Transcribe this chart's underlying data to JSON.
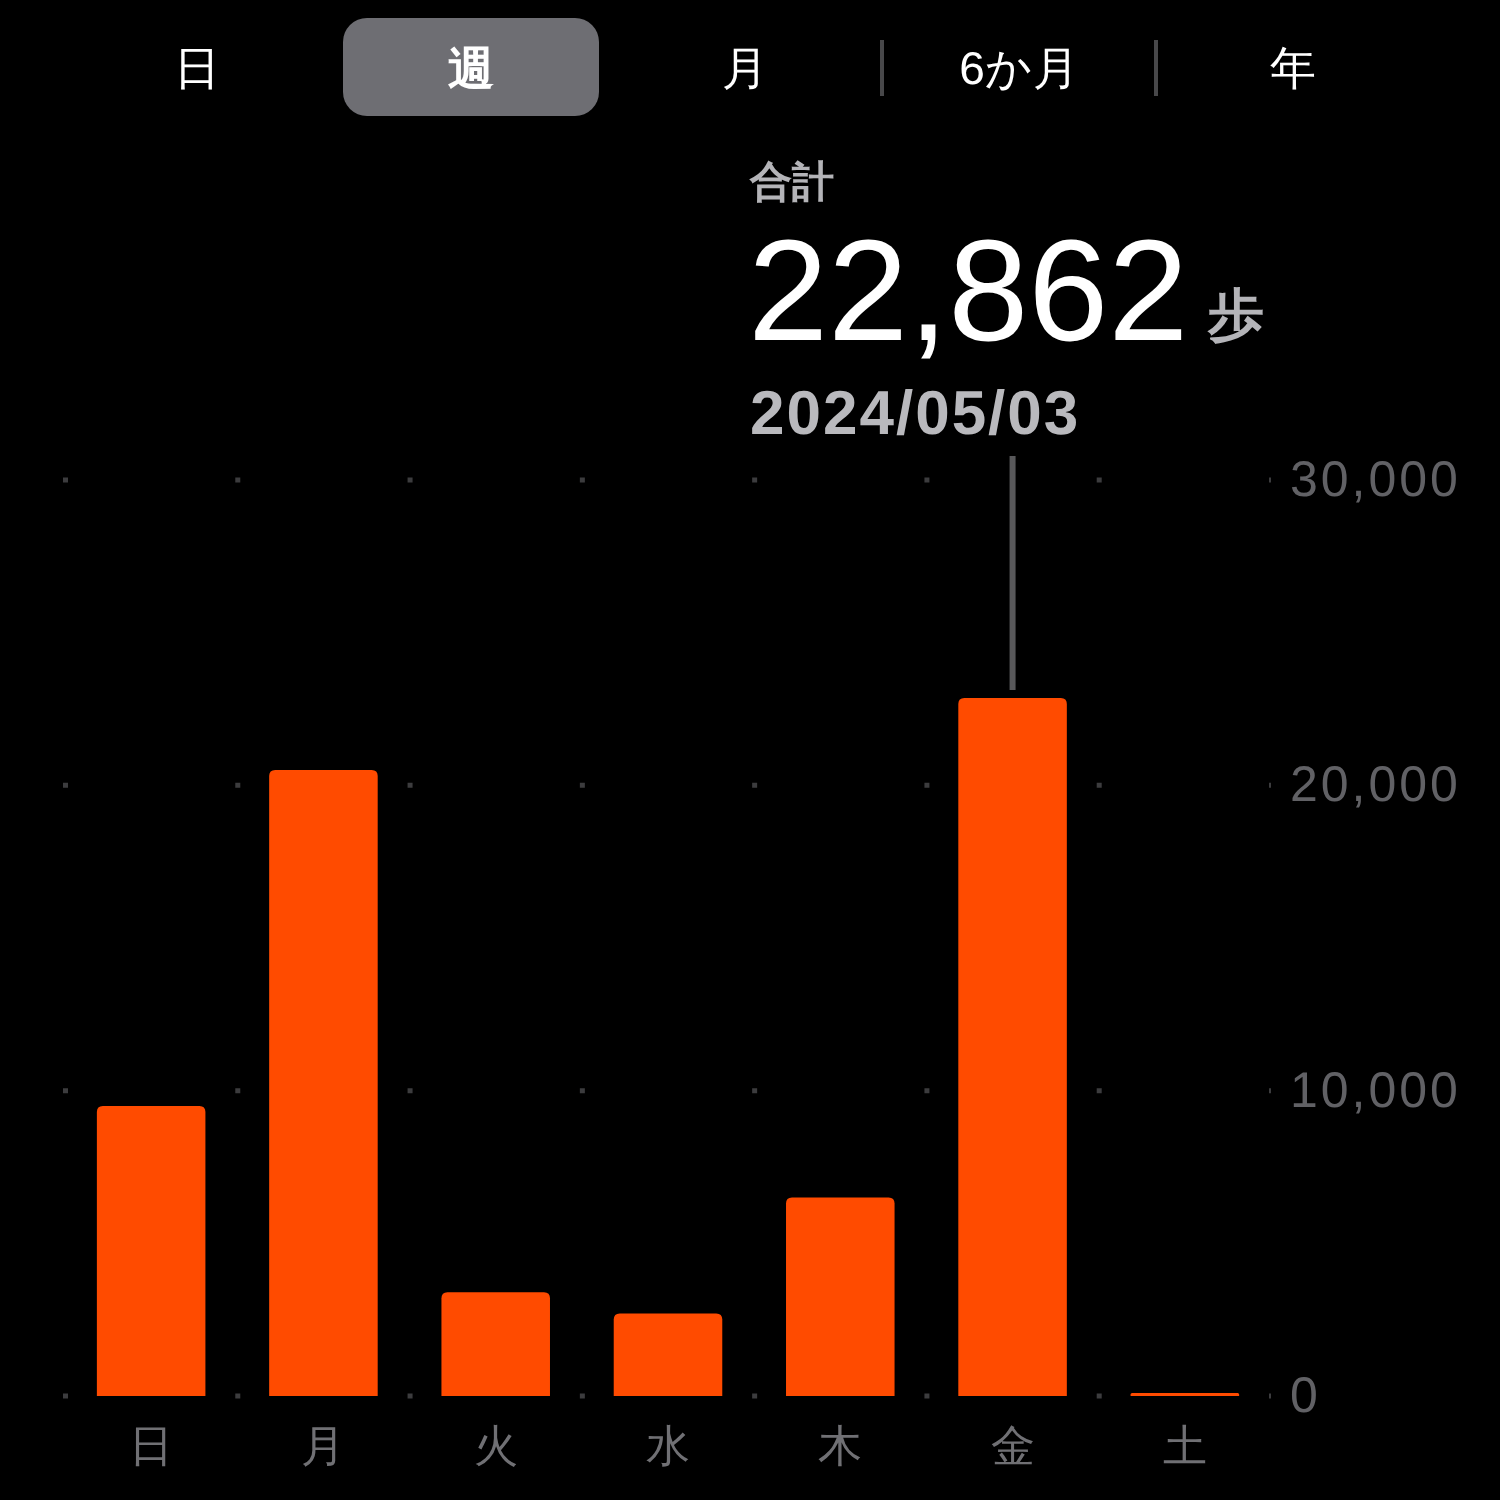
{
  "chart_data": {
    "type": "bar",
    "categories": [
      "日",
      "月",
      "火",
      "水",
      "木",
      "金",
      "土"
    ],
    "values": [
      9500,
      20500,
      3400,
      2700,
      6500,
      22862,
      100
    ],
    "color": "#ff4b00",
    "ylim": [
      0,
      30000
    ],
    "yticks": [
      0,
      {
        "value": 10000,
        "label": "10,000"
      },
      {
        "value": 20000,
        "label": "20,000"
      },
      {
        "value": 30000,
        "label": "30,000"
      }
    ],
    "grid": "y",
    "annotations": [
      "日",
      "週",
      "月",
      "6か月",
      "年",
      "合計",
      {
        "text": "22,862",
        "x": "金",
        "y": 22862
      },
      "歩",
      "2024/05/03"
    ]
  }
}
